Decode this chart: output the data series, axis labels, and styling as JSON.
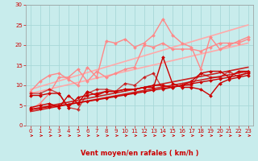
{
  "xlabel": "Vent moyen/en rafales ( km/h )",
  "xlim": [
    -0.5,
    23.5
  ],
  "ylim": [
    0,
    30
  ],
  "yticks": [
    0,
    5,
    10,
    15,
    20,
    25,
    30
  ],
  "xticks": [
    0,
    1,
    2,
    3,
    4,
    5,
    6,
    7,
    8,
    9,
    10,
    11,
    12,
    13,
    14,
    15,
    16,
    17,
    18,
    19,
    20,
    21,
    22,
    23
  ],
  "bg_color": "#c8ecec",
  "grid_color": "#a8d8d8",
  "lines": [
    {
      "x": [
        0,
        1,
        2,
        3,
        4,
        5,
        6,
        7,
        8,
        9,
        10,
        11,
        12,
        13,
        14,
        15,
        16,
        17,
        18,
        19,
        20,
        21,
        22,
        23
      ],
      "y": [
        4.0,
        4.3,
        4.7,
        5.0,
        5.3,
        5.7,
        6.0,
        6.4,
        6.8,
        7.2,
        7.6,
        8.0,
        8.4,
        8.8,
        9.2,
        9.6,
        10.0,
        10.4,
        10.8,
        11.2,
        11.6,
        12.0,
        12.5,
        13.0
      ],
      "color": "#cc0000",
      "lw": 1.0,
      "marker": "D",
      "ms": 2.0,
      "zorder": 5,
      "alpha": 1.0
    },
    {
      "x": [
        0,
        1,
        2,
        3,
        4,
        5,
        6,
        7,
        8,
        9,
        10,
        11,
        12,
        13,
        14,
        15,
        16,
        17,
        18,
        19,
        20,
        21,
        22,
        23
      ],
      "y": [
        4.5,
        5.0,
        5.5,
        4.5,
        7.5,
        5.5,
        8.5,
        7.5,
        8.5,
        8.5,
        9.0,
        9.0,
        9.5,
        9.5,
        17.0,
        10.5,
        9.5,
        9.5,
        9.0,
        7.5,
        10.5,
        11.5,
        12.0,
        12.5
      ],
      "color": "#cc0000",
      "lw": 1.0,
      "marker": "D",
      "ms": 2.0,
      "zorder": 4,
      "alpha": 1.0
    },
    {
      "x": [
        0,
        1,
        2,
        3,
        4,
        5,
        6,
        7,
        8,
        9,
        10,
        11,
        12,
        13,
        14,
        15,
        16,
        17,
        18,
        19,
        20,
        21,
        22,
        23
      ],
      "y": [
        7.5,
        7.5,
        8.0,
        8.0,
        4.5,
        7.0,
        7.5,
        8.0,
        8.5,
        8.5,
        9.0,
        9.0,
        9.5,
        10.0,
        10.0,
        9.5,
        10.0,
        11.0,
        13.0,
        13.5,
        13.5,
        12.0,
        13.5,
        13.5
      ],
      "color": "#cc0000",
      "lw": 1.0,
      "marker": "D",
      "ms": 2.0,
      "zorder": 4,
      "alpha": 1.0
    },
    {
      "x": [
        0,
        1,
        2,
        3,
        4,
        5,
        6,
        7,
        8,
        9,
        10,
        11,
        12,
        13,
        14,
        15,
        16,
        17,
        18,
        19,
        20,
        21,
        22,
        23
      ],
      "y": [
        8.0,
        8.0,
        9.0,
        8.0,
        4.5,
        4.0,
        8.0,
        9.0,
        9.0,
        8.5,
        10.5,
        10.0,
        12.0,
        13.0,
        9.0,
        9.5,
        10.0,
        10.0,
        13.0,
        12.0,
        12.0,
        13.5,
        12.0,
        13.5
      ],
      "color": "#cc0000",
      "lw": 1.0,
      "marker": "D",
      "ms": 2.0,
      "zorder": 4,
      "alpha": 0.7
    },
    {
      "x": [
        0,
        1,
        2,
        3,
        4,
        5,
        6,
        7,
        8,
        9,
        10,
        11,
        12,
        13,
        14,
        15,
        16,
        17,
        18,
        19,
        20,
        21,
        22,
        23
      ],
      "y": [
        8.5,
        11.0,
        12.5,
        13.0,
        11.5,
        10.0,
        14.5,
        12.0,
        21.0,
        20.5,
        21.5,
        19.5,
        20.5,
        22.5,
        26.5,
        22.5,
        20.5,
        19.5,
        14.0,
        22.0,
        19.0,
        20.0,
        21.0,
        22.0
      ],
      "color": "#ff8888",
      "lw": 1.0,
      "marker": "D",
      "ms": 2.0,
      "zorder": 3,
      "alpha": 1.0
    },
    {
      "x": [
        0,
        1,
        2,
        3,
        4,
        5,
        6,
        7,
        8,
        9,
        10,
        11,
        12,
        13,
        14,
        15,
        16,
        17,
        18,
        19,
        20,
        21,
        22,
        23
      ],
      "y": [
        4.0,
        5.5,
        8.0,
        12.0,
        12.0,
        14.0,
        11.0,
        13.5,
        12.0,
        13.0,
        14.0,
        14.5,
        20.0,
        19.5,
        20.5,
        19.0,
        19.0,
        19.0,
        18.5,
        19.5,
        20.5,
        20.5,
        20.5,
        21.5
      ],
      "color": "#ff8888",
      "lw": 1.0,
      "marker": "D",
      "ms": 2.0,
      "zorder": 3,
      "alpha": 1.0
    },
    {
      "x": [
        0,
        23
      ],
      "y": [
        9.0,
        25.0
      ],
      "color": "#ffaaaa",
      "lw": 1.2,
      "marker": null,
      "ms": 0,
      "zorder": 2,
      "alpha": 1.0
    },
    {
      "x": [
        0,
        23
      ],
      "y": [
        8.0,
        20.5
      ],
      "color": "#ffaaaa",
      "lw": 1.2,
      "marker": null,
      "ms": 0,
      "zorder": 2,
      "alpha": 1.0
    },
    {
      "x": [
        0,
        23
      ],
      "y": [
        4.0,
        14.5
      ],
      "color": "#cc2222",
      "lw": 1.2,
      "marker": null,
      "ms": 0,
      "zorder": 2,
      "alpha": 1.0
    },
    {
      "x": [
        0,
        23
      ],
      "y": [
        3.5,
        13.5
      ],
      "color": "#cc2222",
      "lw": 1.2,
      "marker": null,
      "ms": 0,
      "zorder": 2,
      "alpha": 1.0
    }
  ],
  "arrow_color": "#cc0000",
  "xlabel_fontsize": 6.0,
  "xlabel_fontweight": "bold",
  "tick_labelsize": 5.0,
  "ylabel_ticks": [
    "",
    "5",
    "10",
    "15",
    "20",
    "25",
    "30"
  ]
}
